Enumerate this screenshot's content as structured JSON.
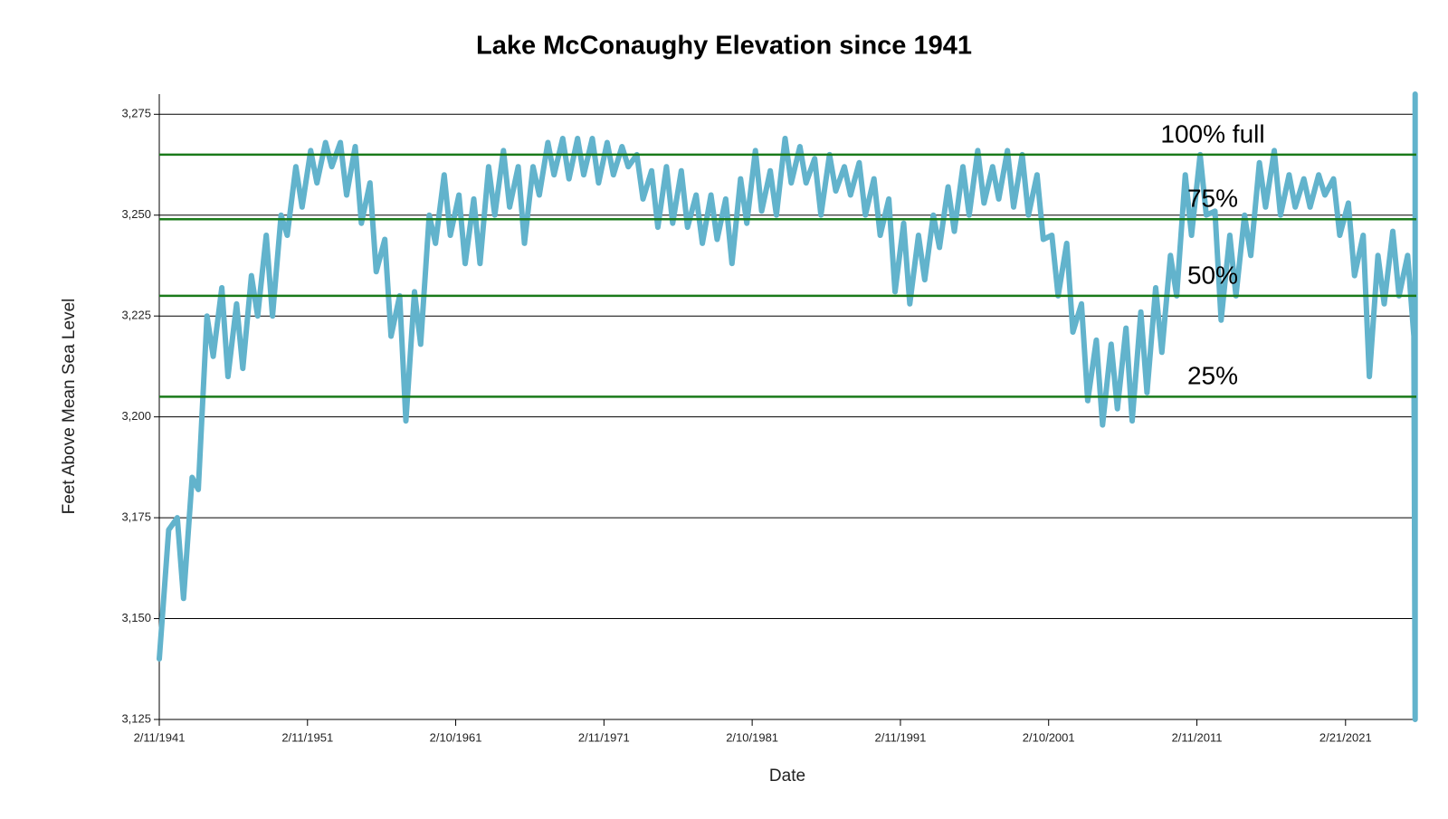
{
  "chart_data": {
    "type": "line",
    "title": "Lake McConaughy Elevation since 1941",
    "xlabel": "Date",
    "ylabel": "Feet Above Mean Sea Level",
    "color": "#62b3cc",
    "grid": true,
    "xlim": [
      "1941-02-11",
      "2025-12-01"
    ],
    "ylim": [
      3125,
      3280
    ],
    "xticks": [
      {
        "value": "1941-02-11",
        "label": "2/11/1941"
      },
      {
        "value": "1951-02-11",
        "label": "2/11/1951"
      },
      {
        "value": "1961-02-10",
        "label": "2/10/1961"
      },
      {
        "value": "1971-02-11",
        "label": "2/11/1971"
      },
      {
        "value": "1981-02-10",
        "label": "2/10/1981"
      },
      {
        "value": "1991-02-11",
        "label": "2/11/1991"
      },
      {
        "value": "2001-02-10",
        "label": "2/10/2001"
      },
      {
        "value": "2011-02-11",
        "label": "2/11/2011"
      },
      {
        "value": "2021-02-21",
        "label": "2/21/2021"
      }
    ],
    "yticks": [
      {
        "value": 3125,
        "label": "3,125"
      },
      {
        "value": 3150,
        "label": "3,150"
      },
      {
        "value": 3175,
        "label": "3,175"
      },
      {
        "value": 3200,
        "label": "3,200"
      },
      {
        "value": 3225,
        "label": "3,225"
      },
      {
        "value": 3250,
        "label": "3,250"
      },
      {
        "value": 3275,
        "label": "3,275"
      }
    ],
    "reference_lines": [
      {
        "label": "100% full",
        "value": 3265,
        "color": "#1a7a1a"
      },
      {
        "label": "75%",
        "value": 3249,
        "color": "#1a7a1a"
      },
      {
        "label": "50%",
        "value": 3230,
        "color": "#1a7a1a"
      },
      {
        "label": "25%",
        "value": 3205,
        "color": "#1a7a1a"
      }
    ],
    "x": [
      "1941-02-11",
      "1941-10-01",
      "1942-05-01",
      "1942-10-01",
      "1943-05-01",
      "1943-10-01",
      "1944-05-01",
      "1944-10-01",
      "1945-05-01",
      "1945-10-01",
      "1946-05-01",
      "1946-10-01",
      "1947-05-01",
      "1947-10-01",
      "1948-05-01",
      "1948-10-01",
      "1949-05-01",
      "1949-10-01",
      "1950-05-01",
      "1950-10-01",
      "1951-05-01",
      "1951-10-01",
      "1952-05-01",
      "1952-10-01",
      "1953-05-01",
      "1953-10-01",
      "1954-05-01",
      "1954-10-01",
      "1955-05-01",
      "1955-10-01",
      "1956-05-01",
      "1956-10-01",
      "1957-05-01",
      "1957-10-01",
      "1958-05-01",
      "1958-10-01",
      "1959-05-01",
      "1959-10-01",
      "1960-05-01",
      "1960-10-01",
      "1961-05-01",
      "1961-10-01",
      "1962-05-01",
      "1962-10-01",
      "1963-05-01",
      "1963-10-01",
      "1964-05-01",
      "1964-10-01",
      "1965-05-01",
      "1965-10-01",
      "1966-05-01",
      "1966-10-01",
      "1967-05-01",
      "1967-10-01",
      "1968-05-01",
      "1968-10-01",
      "1969-05-01",
      "1969-10-01",
      "1970-05-01",
      "1970-10-01",
      "1971-05-01",
      "1971-10-01",
      "1972-05-01",
      "1972-10-01",
      "1973-05-01",
      "1973-10-01",
      "1974-05-01",
      "1974-10-01",
      "1975-05-01",
      "1975-10-01",
      "1976-05-01",
      "1976-10-01",
      "1977-05-01",
      "1977-10-01",
      "1978-05-01",
      "1978-10-01",
      "1979-05-01",
      "1979-10-01",
      "1980-05-01",
      "1980-10-01",
      "1981-05-01",
      "1981-10-01",
      "1982-05-01",
      "1982-10-01",
      "1983-05-01",
      "1983-10-01",
      "1984-05-01",
      "1984-10-01",
      "1985-05-01",
      "1985-10-01",
      "1986-05-01",
      "1986-10-01",
      "1987-05-01",
      "1987-10-01",
      "1988-05-01",
      "1988-10-01",
      "1989-05-01",
      "1989-10-01",
      "1990-05-01",
      "1990-10-01",
      "1991-05-01",
      "1991-10-01",
      "1992-05-01",
      "1992-10-01",
      "1993-05-01",
      "1993-10-01",
      "1994-05-01",
      "1994-10-01",
      "1995-05-01",
      "1995-10-01",
      "1996-05-01",
      "1996-10-01",
      "1997-05-01",
      "1997-10-01",
      "1998-05-01",
      "1998-10-01",
      "1999-05-01",
      "1999-10-01",
      "2000-05-01",
      "2000-10-01",
      "2001-05-01",
      "2001-10-01",
      "2002-05-01",
      "2002-10-01",
      "2003-05-01",
      "2003-10-01",
      "2004-05-01",
      "2004-10-01",
      "2005-05-01",
      "2005-10-01",
      "2006-05-01",
      "2006-10-01",
      "2007-05-01",
      "2007-10-01",
      "2008-05-01",
      "2008-10-01",
      "2009-05-01",
      "2009-10-01",
      "2010-05-01",
      "2010-10-01",
      "2011-05-01",
      "2011-10-01",
      "2012-05-01",
      "2012-10-01",
      "2013-05-01",
      "2013-10-01",
      "2014-05-01",
      "2014-10-01",
      "2015-05-01",
      "2015-10-01",
      "2016-05-01",
      "2016-10-01",
      "2017-05-01",
      "2017-10-01",
      "2018-05-01",
      "2018-10-01",
      "2019-05-01",
      "2019-10-01",
      "2020-05-01",
      "2020-10-01",
      "2021-05-01",
      "2021-10-01",
      "2022-05-01",
      "2022-10-01",
      "2023-05-01",
      "2023-10-01",
      "2024-05-01",
      "2024-10-01",
      "2025-05-01",
      "2025-10-01",
      "2025-11-01",
      "2025-11-02"
    ],
    "values": [
      3140,
      3172,
      3175,
      3155,
      3185,
      3182,
      3225,
      3215,
      3232,
      3210,
      3228,
      3212,
      3235,
      3225,
      3245,
      3225,
      3250,
      3245,
      3262,
      3252,
      3266,
      3258,
      3268,
      3262,
      3268,
      3255,
      3267,
      3248,
      3258,
      3236,
      3244,
      3220,
      3230,
      3199,
      3231,
      3218,
      3250,
      3243,
      3260,
      3245,
      3255,
      3238,
      3254,
      3238,
      3262,
      3250,
      3266,
      3252,
      3262,
      3243,
      3262,
      3255,
      3268,
      3260,
      3269,
      3259,
      3269,
      3260,
      3269,
      3258,
      3268,
      3260,
      3267,
      3262,
      3265,
      3254,
      3261,
      3247,
      3262,
      3248,
      3261,
      3247,
      3255,
      3243,
      3255,
      3244,
      3254,
      3238,
      3259,
      3248,
      3266,
      3251,
      3261,
      3250,
      3269,
      3258,
      3267,
      3258,
      3264,
      3250,
      3265,
      3256,
      3262,
      3255,
      3263,
      3250,
      3259,
      3245,
      3254,
      3231,
      3248,
      3228,
      3245,
      3234,
      3250,
      3242,
      3257,
      3246,
      3262,
      3250,
      3266,
      3253,
      3262,
      3254,
      3266,
      3252,
      3265,
      3250,
      3260,
      3244,
      3245,
      3230,
      3243,
      3221,
      3228,
      3204,
      3219,
      3198,
      3218,
      3202,
      3222,
      3199,
      3226,
      3206,
      3232,
      3216,
      3240,
      3230,
      3260,
      3245,
      3265,
      3250,
      3251,
      3224,
      3245,
      3230,
      3250,
      3240,
      3263,
      3252,
      3266,
      3250,
      3260,
      3252,
      3259,
      3252,
      3260,
      3255,
      3259,
      3245,
      3253,
      3235,
      3245,
      3210,
      3240,
      3228,
      3246,
      3230,
      3240,
      3220,
      3125,
      3280
    ]
  }
}
